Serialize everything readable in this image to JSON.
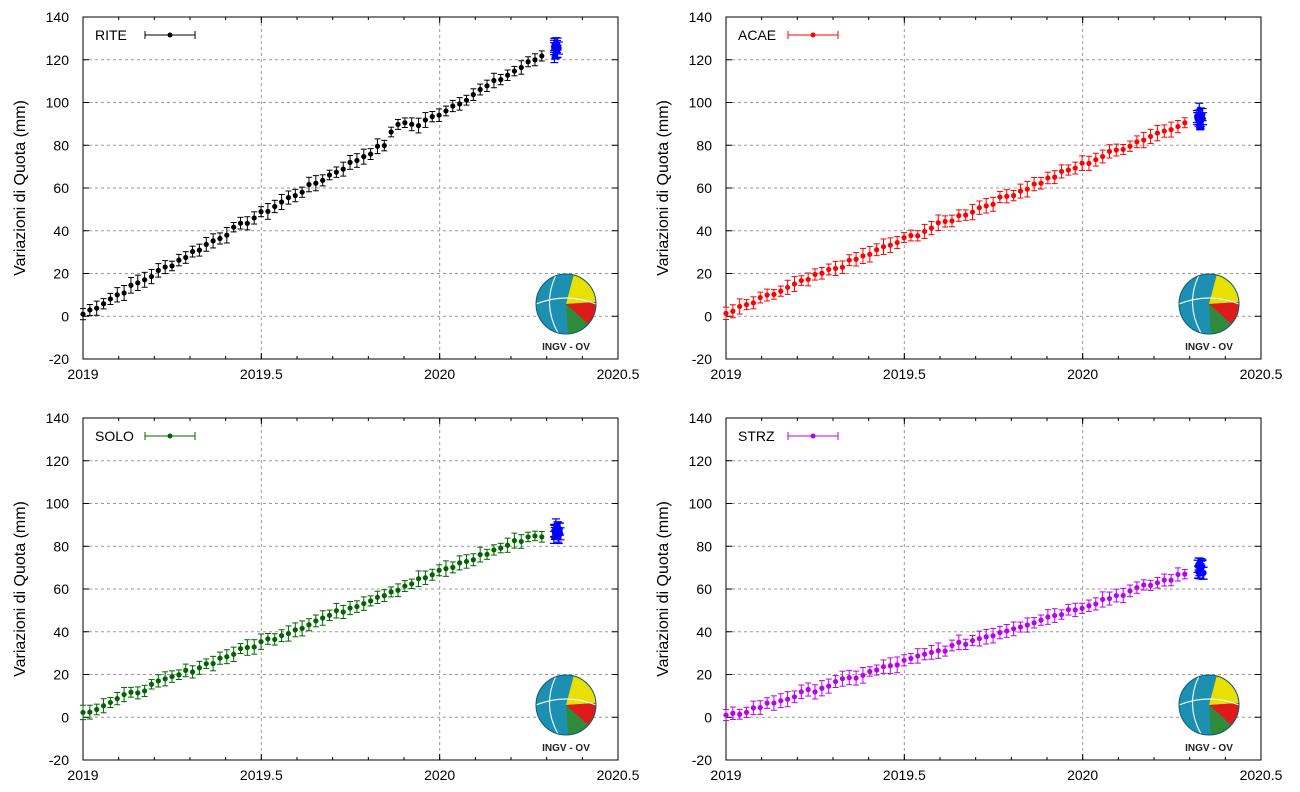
{
  "chart_data": [
    {
      "type": "scatter",
      "name": "RITE",
      "color": "#000000",
      "ylabel": "Variazioni di Quota (mm)",
      "xlim": [
        2019,
        2020.5
      ],
      "ylim": [
        -20,
        140
      ],
      "xticks": [
        "2019",
        "2019.5",
        "2020",
        "2020.5"
      ],
      "yticks": [
        "-20",
        "0",
        "20",
        "40",
        "60",
        "80",
        "100",
        "120",
        "140"
      ],
      "grid": true,
      "legend": "top-left",
      "start": 1,
      "rate": 94,
      "end_value": 122,
      "recent_cluster": {
        "x": [
          2020.32,
          2020.34
        ],
        "y": [
          121,
          128
        ],
        "color": "#0000ff"
      }
    },
    {
      "type": "scatter",
      "name": "ACAE",
      "color": "#ff0000",
      "ylabel": "Variazioni di Quota (mm)",
      "xlim": [
        2019,
        2020.5
      ],
      "ylim": [
        -20,
        140
      ],
      "xticks": [
        "2019",
        "2019.5",
        "2020",
        "2020.5"
      ],
      "yticks": [
        "-20",
        "0",
        "20",
        "40",
        "60",
        "80",
        "100",
        "120",
        "140"
      ],
      "grid": true,
      "legend": "top-left",
      "start": 1,
      "rate": 70,
      "end_value": 90,
      "recent_cluster": {
        "x": [
          2020.32,
          2020.34
        ],
        "y": [
          90,
          97
        ],
        "color": "#0000ff"
      }
    },
    {
      "type": "scatter",
      "name": "SOLO",
      "color": "#006400",
      "ylabel": "Variazioni di Quota (mm)",
      "xlim": [
        2019,
        2020.5
      ],
      "ylim": [
        -20,
        140
      ],
      "xticks": [
        "2019",
        "2019.5",
        "2020",
        "2020.5"
      ],
      "yticks": [
        "-20",
        "0",
        "20",
        "40",
        "60",
        "80",
        "100",
        "120",
        "140"
      ],
      "grid": true,
      "legend": "top-left",
      "start": 2,
      "rate": 66,
      "end_value": 85,
      "recent_cluster": {
        "x": [
          2020.32,
          2020.34
        ],
        "y": [
          84,
          90
        ],
        "color": "#0000ff"
      }
    },
    {
      "type": "scatter",
      "name": "STRZ",
      "color": "#bb00ee",
      "ylabel": "Variazioni di Quota (mm)",
      "xlim": [
        2019,
        2020.5
      ],
      "ylim": [
        -20,
        140
      ],
      "xticks": [
        "2019",
        "2019.5",
        "2020",
        "2020.5"
      ],
      "yticks": [
        "-20",
        "0",
        "20",
        "40",
        "60",
        "80",
        "100",
        "120",
        "140"
      ],
      "grid": true,
      "legend": "top-left",
      "start": 0,
      "rate": 52,
      "end_value": 68,
      "recent_cluster": {
        "x": [
          2020.32,
          2020.34
        ],
        "y": [
          67,
          72
        ],
        "color": "#0000ff"
      }
    }
  ],
  "logo": {
    "text": "INGV - OV"
  }
}
